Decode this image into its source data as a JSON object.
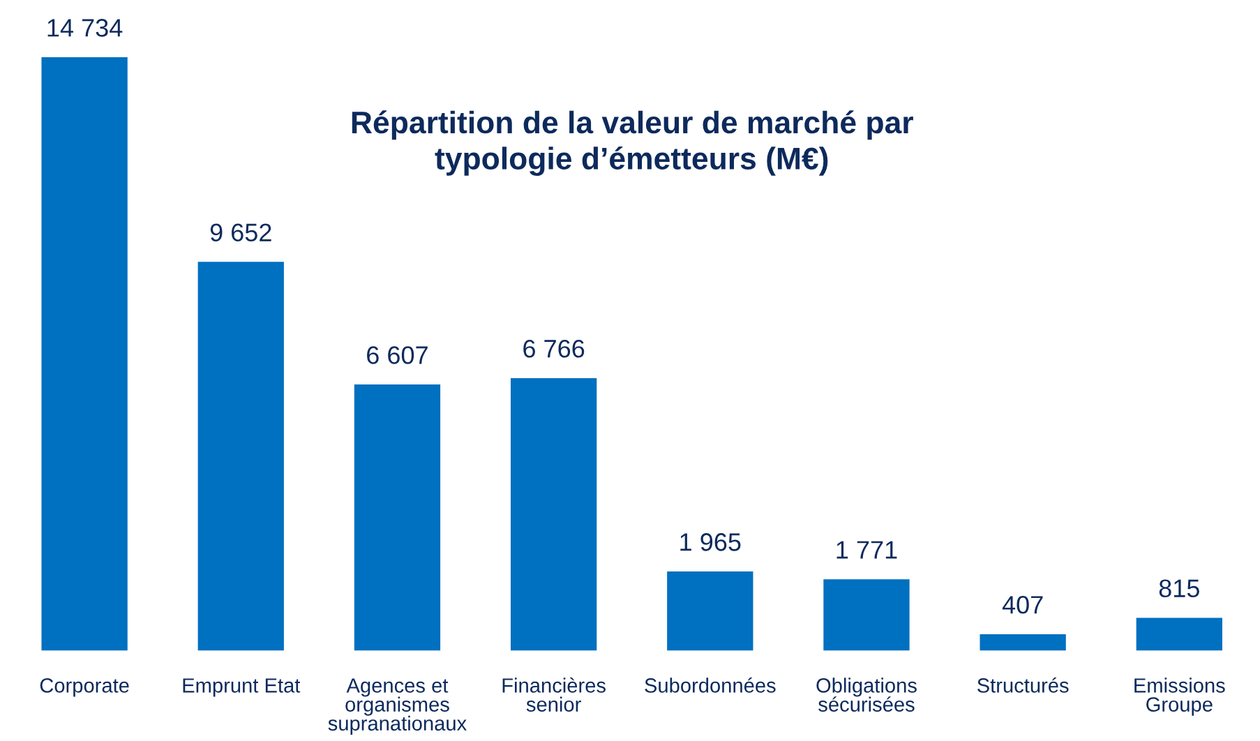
{
  "chart_data": {
    "type": "bar",
    "title": "Répartition de la valeur de marché par\ntypologie d’émetteurs (M€)",
    "categories": [
      "Corporate",
      "Emprunt Etat",
      "Agences et\norganismes\nsupranationaux",
      "Financières\nsenior",
      "Subordonnées",
      "Obligations\nsécurisées",
      "Structurés",
      "Emissions\nGroupe"
    ],
    "values": [
      14734,
      9652,
      6607,
      6766,
      1965,
      1771,
      407,
      815
    ],
    "value_labels": [
      "14 734",
      "9 652",
      "6 607",
      "6 766",
      "1 965",
      "1 771",
      "407",
      "815"
    ],
    "color": "#0070c0",
    "grid": false,
    "legend": false
  }
}
